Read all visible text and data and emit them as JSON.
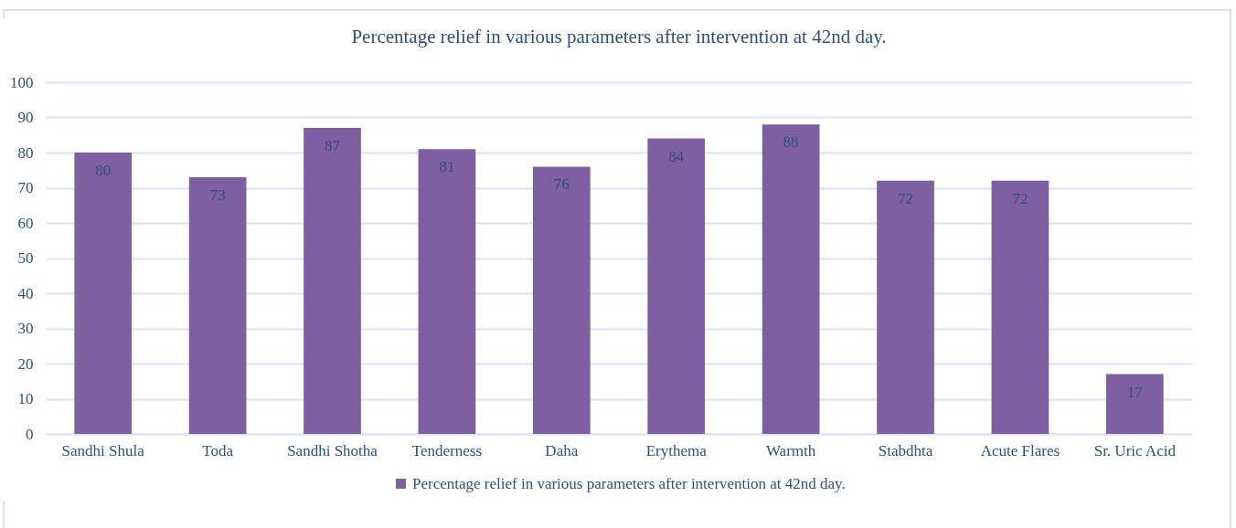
{
  "chart_data": {
    "type": "bar",
    "title": "Percentage relief in various parameters after intervention at 42nd day.",
    "categories": [
      "Sandhi Shula",
      "Toda",
      "Sandhi Shotha",
      "Tenderness",
      "Daha",
      "Erythema",
      "Warmth",
      "Stabdhta",
      "Acute Flares",
      "Sr. Uric Acid"
    ],
    "series": [
      {
        "name": "Percentage relief in various parameters after intervention at 42nd day.",
        "color": "#7e5fa0",
        "values": [
          80,
          73,
          87,
          81,
          76,
          84,
          88,
          72,
          72,
          17
        ]
      }
    ],
    "ylim": [
      0,
      100
    ],
    "yticks": [
      0,
      10,
      20,
      30,
      40,
      50,
      60,
      70,
      80,
      90,
      100
    ],
    "grid": "y",
    "legend": "bottom",
    "data_labels": true
  }
}
